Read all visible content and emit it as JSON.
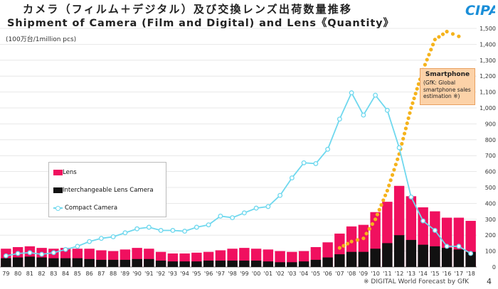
{
  "title_jp": "カメラ（フィルム＋デジタル）及び交換レンズ出荷数量推移",
  "title_en": "Shipment of Camera (Film and Digital) and Lens《Quantity》",
  "unit_label": "(100万台/1million pcs)",
  "logo_text": "CIPA",
  "footnote": "※ DIGITAL World Forecast by GfK",
  "page_number": "4",
  "callout": {
    "title": "Smartphone",
    "text": "(GfK: Global smartphone sales estimation ※)"
  },
  "legend": {
    "lens": "Lens",
    "ilc": "Interchangeable Lens Camera",
    "compact": "Compact Camera"
  },
  "colors": {
    "lens": "#f0105f",
    "ilc": "#111111",
    "compact": "#6fd8ee",
    "smartphone": "#f5b31c"
  },
  "chart_data": {
    "type": "bar",
    "title": "Shipment of Camera (Film and Digital) and Lens《Quantity》",
    "ylabel": "(100万台/1million pcs)",
    "ylim": [
      0,
      1500
    ],
    "yticks": [
      0,
      100,
      200,
      300,
      400,
      500,
      600,
      700,
      800,
      900,
      1000,
      1100,
      1200,
      1300,
      1400,
      1500
    ],
    "ytick_labels": [
      "0",
      "100",
      "200",
      "300",
      "400",
      "500",
      "600",
      "700",
      "800",
      "900",
      "1,000",
      "1,100",
      "1,200",
      "1,300",
      "1,400",
      "1,500"
    ],
    "categories": [
      "79",
      "80",
      "81",
      "82",
      "83",
      "84",
      "85",
      "86",
      "87",
      "88",
      "'89",
      "'90",
      "'91",
      "'92",
      "'93",
      "'94",
      "'95",
      "'96",
      "'97",
      "'98",
      "'99",
      "'00",
      "'01",
      "'02",
      "'03",
      "'04",
      "'05",
      "'06",
      "'07",
      "'08",
      "'09",
      "'10",
      "'11",
      "'12",
      "'13",
      "'14",
      "'15",
      "'16",
      "'17",
      "'18"
    ],
    "category_labels": [
      "79",
      "80",
      "81",
      "82",
      "83",
      "84",
      "85",
      "86",
      "87",
      "88",
      "'89",
      "'90",
      "'91",
      "'92",
      "'93",
      "'94",
      "'95",
      "'96",
      "'97",
      "'98",
      "'99",
      "'00",
      "'01",
      "'02",
      "'03",
      "'04",
      "'05",
      "'06",
      "'07",
      "'08",
      "'09",
      "'10",
      "'11",
      "'12",
      "'13",
      "'14",
      "'15",
      "'16",
      "'17",
      "'18"
    ],
    "grid": true,
    "legend_position": "left",
    "series": [
      {
        "name": "Lens",
        "kind": "bar",
        "values": [
          115,
          125,
          130,
          120,
          115,
          120,
          115,
          115,
          105,
          100,
          110,
          120,
          115,
          95,
          85,
          85,
          90,
          95,
          105,
          115,
          120,
          115,
          110,
          100,
          95,
          100,
          125,
          155,
          210,
          255,
          265,
          345,
          410,
          510,
          445,
          375,
          350,
          310,
          310,
          290
        ]
      },
      {
        "name": "Interchangeable Lens Camera",
        "kind": "bar",
        "values": [
          55,
          60,
          65,
          60,
          55,
          55,
          55,
          50,
          45,
          45,
          45,
          50,
          50,
          40,
          35,
          35,
          35,
          40,
          40,
          40,
          40,
          40,
          35,
          30,
          30,
          35,
          45,
          60,
          80,
          95,
          95,
          115,
          150,
          200,
          170,
          140,
          130,
          120,
          110,
          95
        ]
      },
      {
        "name": "Compact Camera",
        "kind": "line",
        "values": [
          70,
          85,
          90,
          80,
          90,
          110,
          130,
          160,
          180,
          190,
          215,
          240,
          250,
          230,
          230,
          225,
          250,
          265,
          320,
          310,
          340,
          370,
          380,
          450,
          560,
          655,
          650,
          740,
          930,
          1095,
          955,
          1080,
          985,
          750,
          440,
          290,
          230,
          130,
          130,
          85
        ]
      },
      {
        "name": "Smartphone",
        "kind": "dotted-line",
        "x_start": "'07",
        "values": [
          null,
          null,
          null,
          null,
          null,
          null,
          null,
          null,
          null,
          null,
          null,
          null,
          null,
          null,
          null,
          null,
          null,
          null,
          null,
          null,
          null,
          null,
          null,
          null,
          null,
          null,
          null,
          null,
          120,
          160,
          180,
          300,
          480,
          710,
          1000,
          1240,
          1430,
          1480,
          1450,
          null
        ]
      }
    ]
  }
}
